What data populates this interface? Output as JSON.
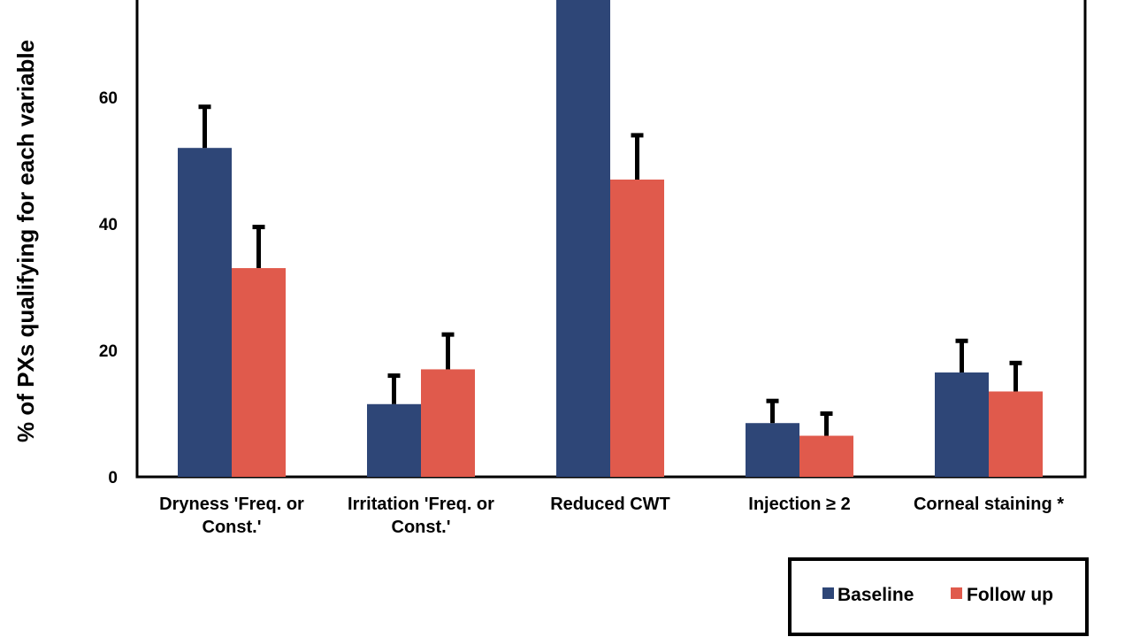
{
  "chart_data": {
    "type": "bar",
    "title": "",
    "ylabel": "%  of PXs qualifying for each variable",
    "xlabel": "",
    "categories": [
      [
        "Dryness  'Freq. or",
        "Const.'"
      ],
      [
        "Irritation 'Freq. or",
        "Const.'"
      ],
      [
        "Reduced CWT"
      ],
      [
        "Injection ≥ 2"
      ],
      [
        "Corneal staining *"
      ]
    ],
    "series": [
      {
        "name": "Baseline",
        "color": "#2e4677",
        "values": [
          52,
          11.5,
          80,
          8.5,
          16.5
        ],
        "errors": [
          6.5,
          4.5,
          0,
          3.5,
          5
        ]
      },
      {
        "name": "Follow up",
        "color": "#e05a4c",
        "values": [
          33,
          17,
          47,
          6.5,
          13.5
        ],
        "errors": [
          6.5,
          5.5,
          7,
          3.5,
          4.5
        ]
      }
    ],
    "yticks": [
      0,
      20,
      40,
      60
    ],
    "ylim": [
      0,
      80
    ],
    "grid": false,
    "legend_position": "bottom-right"
  }
}
